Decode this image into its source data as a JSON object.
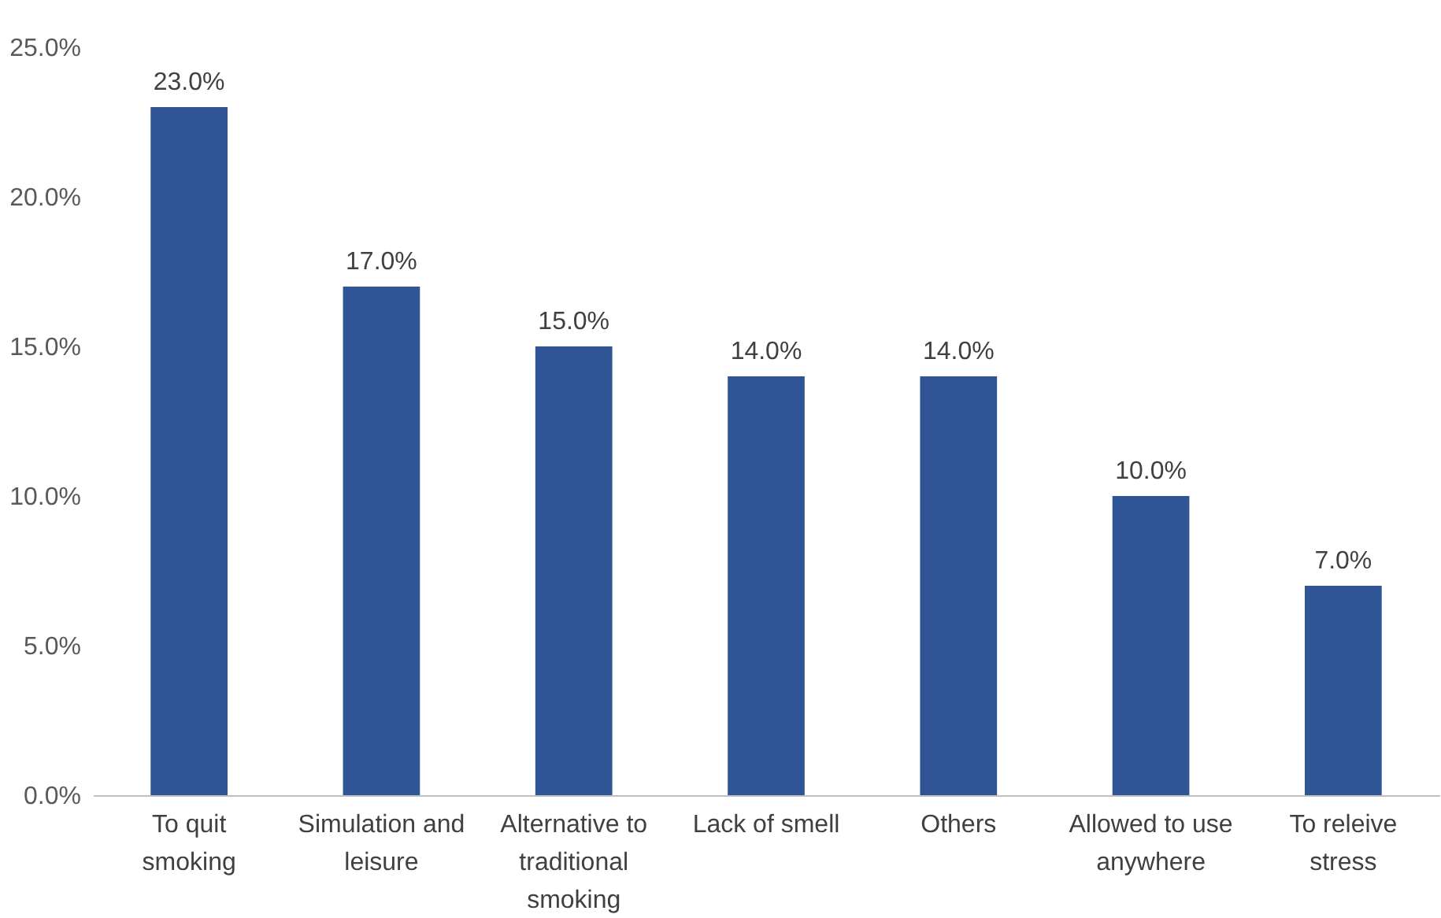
{
  "chart_data": {
    "type": "bar",
    "categories": [
      "To quit smoking",
      "Simulation and leisure",
      "Alternative to traditional smoking",
      "Lack of smell",
      "Others",
      "Allowed to use anywhere",
      "To releive stress"
    ],
    "values": [
      23,
      17,
      15,
      14,
      14,
      10,
      7
    ],
    "value_labels": [
      "23.0%",
      "17.0%",
      "15.0%",
      "14.0%",
      "14.0%",
      "10.0%",
      "7.0%"
    ],
    "color": "#2f5597",
    "ylim": [
      0,
      25
    ],
    "yticks": [
      {
        "value": 0,
        "label": "0.0%"
      },
      {
        "value": 5,
        "label": "5.0%"
      },
      {
        "value": 10,
        "label": "10.0%"
      },
      {
        "value": 15,
        "label": "15.0%"
      },
      {
        "value": 20,
        "label": "20.0%"
      },
      {
        "value": 25,
        "label": "25.0%"
      }
    ],
    "grid": false
  }
}
